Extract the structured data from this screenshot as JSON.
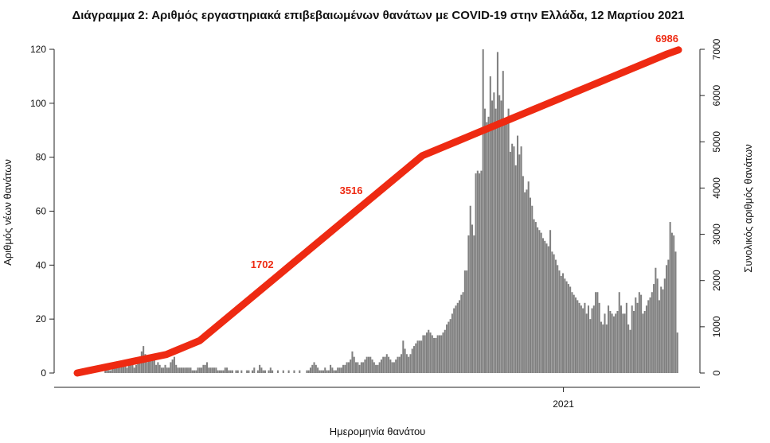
{
  "chart_data": {
    "type": "bar",
    "title": "Διάγραμμα 2: Αριθμός εργαστηριακά επιβεβαιωμένων θανάτων με COVID-19 στην Ελλάδα, 12 Μαρτίου 2021",
    "xlabel": "Ημερομηνία θανάτου",
    "ylabel": "Αριθμός νέων θανάτων",
    "y2label": "Συνολικός αριθμός θανάτων",
    "x_tick_labels": [
      "2021"
    ],
    "x_tick_dates": [
      "2021-01-01"
    ],
    "date_range": [
      "2020-03-11",
      "2021-03-12"
    ],
    "ylim": [
      0,
      120
    ],
    "y_ticks": [
      "0",
      "20",
      "40",
      "60",
      "80",
      "100",
      "120"
    ],
    "y2lim": [
      0,
      7000
    ],
    "y2_ticks": [
      "0",
      "1000",
      "2000",
      "3000",
      "4000",
      "5000",
      "6000",
      "7000"
    ],
    "grid": false,
    "colors": {
      "bars": "#808080",
      "cumulative": "#ee2a12"
    },
    "series": [
      {
        "type": "bar",
        "values": [
          0,
          0,
          0,
          0,
          0,
          0,
          0,
          0,
          0,
          0,
          0,
          0,
          0,
          0,
          0,
          1,
          1,
          1,
          1,
          2,
          2,
          2,
          3,
          3,
          4,
          4,
          3,
          2,
          4,
          5,
          3,
          2,
          3,
          5,
          6,
          8,
          10,
          7,
          4,
          5,
          6,
          7,
          5,
          3,
          4,
          3,
          2,
          2,
          3,
          2,
          2,
          4,
          5,
          6,
          3,
          2,
          2,
          2,
          2,
          2,
          2,
          2,
          2,
          1,
          1,
          1,
          2,
          2,
          2,
          3,
          3,
          4,
          2,
          2,
          2,
          2,
          2,
          1,
          1,
          1,
          1,
          2,
          2,
          1,
          1,
          1,
          0,
          1,
          1,
          0,
          1,
          0,
          0,
          1,
          1,
          0,
          1,
          2,
          0,
          1,
          3,
          2,
          1,
          1,
          0,
          1,
          2,
          1,
          0,
          0,
          1,
          0,
          0,
          1,
          0,
          0,
          1,
          0,
          0,
          1,
          0,
          0,
          1,
          0,
          0,
          0,
          1,
          1,
          2,
          3,
          4,
          3,
          2,
          1,
          1,
          1,
          2,
          1,
          1,
          3,
          2,
          1,
          1,
          2,
          2,
          2,
          3,
          3,
          4,
          4,
          5,
          8,
          6,
          4,
          4,
          3,
          4,
          4,
          5,
          6,
          6,
          6,
          5,
          4,
          3,
          3,
          4,
          5,
          6,
          6,
          7,
          6,
          5,
          4,
          4,
          5,
          6,
          6,
          7,
          12,
          9,
          7,
          6,
          7,
          9,
          10,
          11,
          12,
          12,
          12,
          14,
          14,
          15,
          16,
          15,
          14,
          13,
          13,
          14,
          14,
          14,
          15,
          16,
          18,
          19,
          20,
          22,
          24,
          25,
          26,
          27,
          29,
          30,
          38,
          38,
          51,
          62,
          55,
          51,
          74,
          75,
          74,
          75,
          120,
          98,
          93,
          95,
          110,
          101,
          104,
          98,
          119,
          103,
          101,
          112,
          93,
          93,
          98,
          82,
          85,
          84,
          77,
          88,
          81,
          84,
          73,
          67,
          68,
          71,
          65,
          62,
          57,
          56,
          54,
          53,
          52,
          50,
          49,
          48,
          47,
          53,
          45,
          44,
          42,
          40,
          38,
          36,
          37,
          35,
          34,
          33,
          32,
          30,
          29,
          28,
          27,
          26,
          25,
          24,
          26,
          22,
          25,
          20,
          24,
          25,
          30,
          30,
          26,
          19,
          18,
          22,
          18,
          25,
          23,
          22,
          21,
          22,
          23,
          30,
          25,
          22,
          22,
          26,
          18,
          16,
          25,
          23,
          28,
          26,
          30,
          29,
          22,
          23,
          25,
          27,
          28,
          30,
          33,
          39,
          35,
          27,
          32,
          31,
          35,
          40,
          42,
          56,
          52,
          51,
          45,
          15
        ],
        "labels": {
          "10": 10,
          "2021": 2021
        }
      },
      {
        "type": "line",
        "values": [
          0,
          50,
          100,
          150,
          200,
          250,
          300,
          350,
          400,
          500,
          600,
          700,
          900,
          1100,
          1300,
          1500,
          1700,
          1900,
          2100,
          2300,
          2500,
          2700,
          2900,
          3100,
          3300,
          3500,
          3700,
          3900,
          4100,
          4300,
          4500,
          4700,
          4800,
          4900,
          5000,
          5100,
          5200,
          5300,
          5400,
          5500,
          5600,
          5700,
          5800,
          5900,
          6000,
          6100,
          6200,
          6300,
          6400,
          6500,
          6600,
          6700,
          6800,
          6900,
          6986
        ]
      }
    ],
    "cumulative_labels": [
      "1702",
      "3516",
      "6986"
    ]
  }
}
